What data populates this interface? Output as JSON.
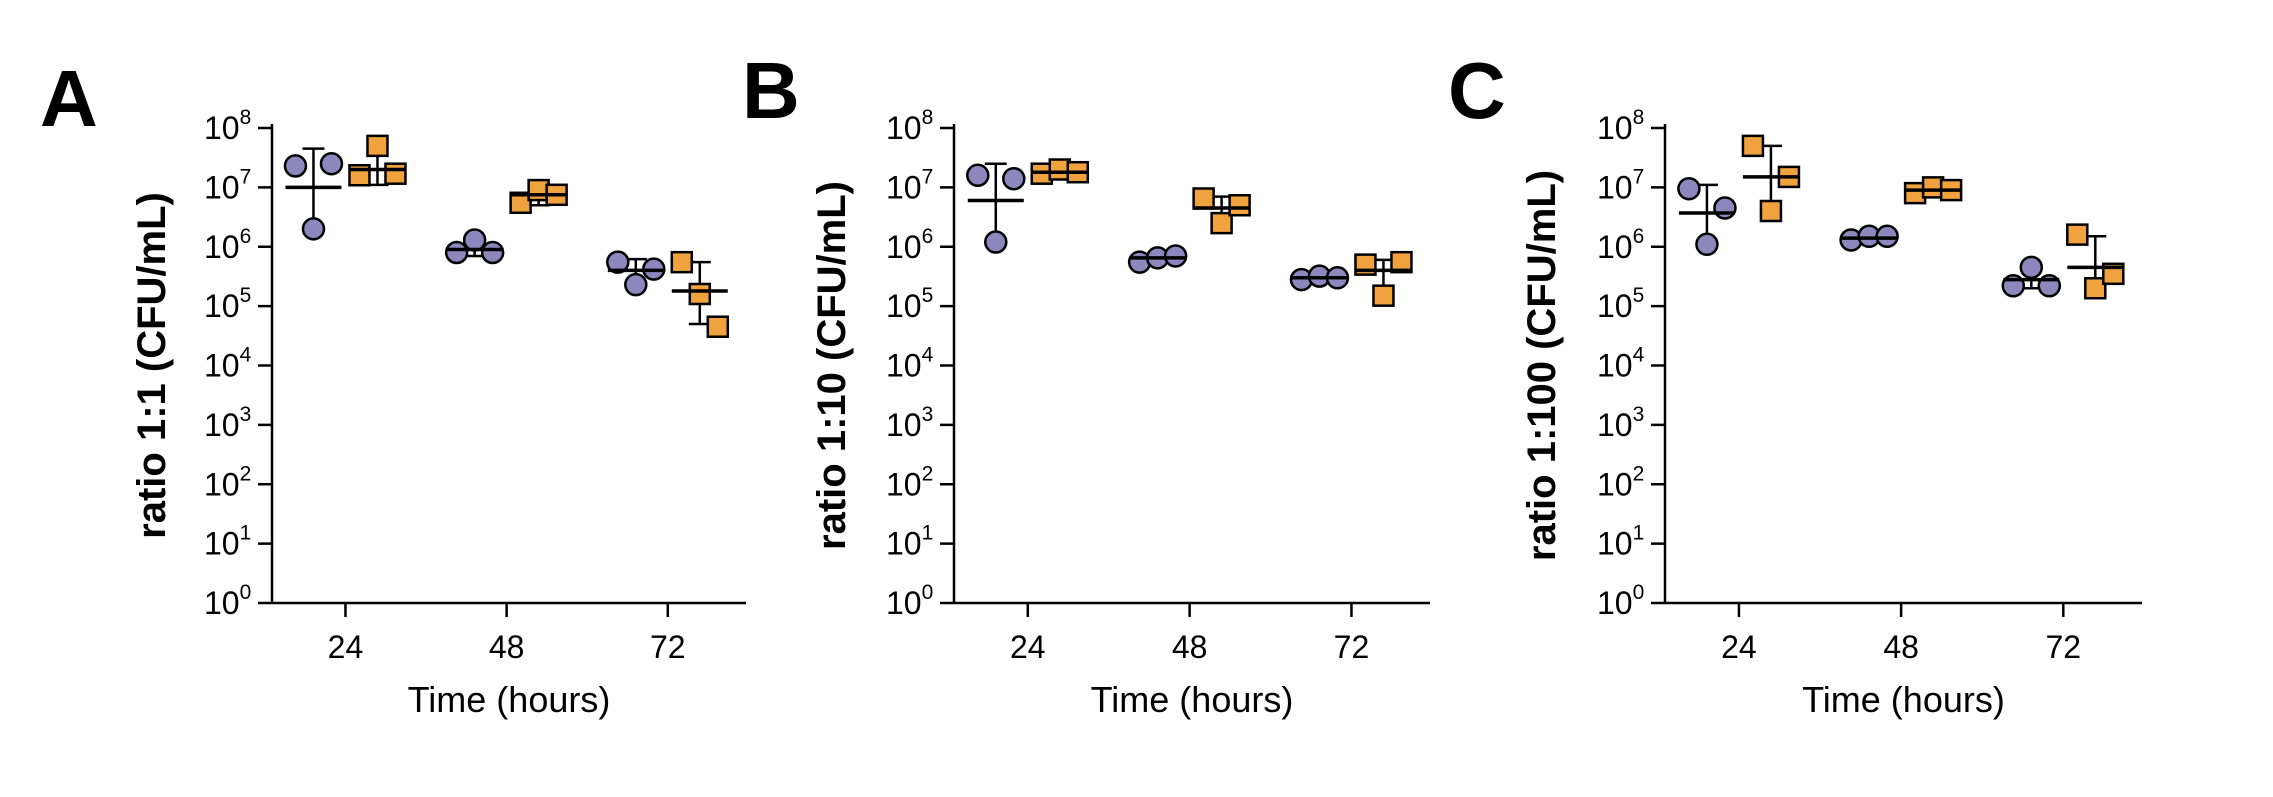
{
  "colors": {
    "circle": "#8e87bd",
    "square": "#f0a23e",
    "stroke": "#000000"
  },
  "chart_data": [
    {
      "panel": "A",
      "type": "scatter",
      "ylabel": "ratio 1:1 (CFU/mL)",
      "xlabel": "Time (hours)",
      "x_ticks": [
        "24",
        "48",
        "72"
      ],
      "y_scale": "log10",
      "y_ticks": [
        "10^0",
        "10^1",
        "10^2",
        "10^3",
        "10^4",
        "10^5",
        "10^6",
        "10^7",
        "10^8"
      ],
      "ylim": [
        1,
        100000000
      ],
      "series": [
        {
          "marker": "circle",
          "groups": [
            {
              "x": "24",
              "points": [
                23000000,
                2000000,
                25000000
              ],
              "mean": 10000000,
              "sd_low": 2000000,
              "sd_high": 45000000
            },
            {
              "x": "48",
              "points": [
                800000,
                1300000,
                800000
              ],
              "mean": 900000,
              "sd_low": 700000,
              "sd_high": 1100000
            },
            {
              "x": "72",
              "points": [
                550000,
                230000,
                420000
              ],
              "mean": 400000,
              "sd_low": 230000,
              "sd_high": 620000
            }
          ]
        },
        {
          "marker": "square",
          "groups": [
            {
              "x": "24",
              "points": [
                16000000,
                50000000,
                17000000
              ],
              "mean": 20000000,
              "sd_low": 11000000,
              "sd_high": 38000000
            },
            {
              "x": "48",
              "points": [
                5500000,
                9000000,
                7500000
              ],
              "mean": 7500000,
              "sd_low": 5000000,
              "sd_high": 10000000
            },
            {
              "x": "72",
              "points": [
                550000,
                160000,
                45000
              ],
              "mean": 180000,
              "sd_low": 50000,
              "sd_high": 550000
            }
          ]
        }
      ]
    },
    {
      "panel": "B",
      "type": "scatter",
      "ylabel": "ratio 1:10 (CFU/mL)",
      "xlabel": "Time (hours)",
      "x_ticks": [
        "24",
        "48",
        "72"
      ],
      "y_scale": "log10",
      "y_ticks": [
        "10^0",
        "10^1",
        "10^2",
        "10^3",
        "10^4",
        "10^5",
        "10^6",
        "10^7",
        "10^8"
      ],
      "ylim": [
        1,
        100000000
      ],
      "series": [
        {
          "marker": "circle",
          "groups": [
            {
              "x": "24",
              "points": [
                16000000,
                1200000,
                14000000
              ],
              "mean": 6000000,
              "sd_low": 1200000,
              "sd_high": 25000000
            },
            {
              "x": "48",
              "points": [
                550000,
                650000,
                700000
              ],
              "mean": 650000,
              "sd_low": 550000,
              "sd_high": 750000
            },
            {
              "x": "72",
              "points": [
                280000,
                320000,
                300000
              ],
              "mean": 300000,
              "sd_low": 260000,
              "sd_high": 350000
            }
          ]
        },
        {
          "marker": "square",
          "groups": [
            {
              "x": "24",
              "points": [
                17000000,
                20000000,
                18000000
              ],
              "mean": 18000000,
              "sd_low": 15000000,
              "sd_high": 22000000
            },
            {
              "x": "48",
              "points": [
                6500000,
                2500000,
                5000000
              ],
              "mean": 4500000,
              "sd_low": 2500000,
              "sd_high": 7000000
            },
            {
              "x": "72",
              "points": [
                500000,
                150000,
                550000
              ],
              "mean": 400000,
              "sd_low": 200000,
              "sd_high": 600000
            }
          ]
        }
      ]
    },
    {
      "panel": "C",
      "type": "scatter",
      "ylabel": "ratio 1:100 (CFU/mL)",
      "xlabel": "Time (hours)",
      "x_ticks": [
        "24",
        "48",
        "72"
      ],
      "y_scale": "log10",
      "y_ticks": [
        "10^0",
        "10^1",
        "10^2",
        "10^3",
        "10^4",
        "10^5",
        "10^6",
        "10^7",
        "10^8"
      ],
      "ylim": [
        1,
        100000000
      ],
      "series": [
        {
          "marker": "circle",
          "groups": [
            {
              "x": "24",
              "points": [
                9500000,
                1100000,
                4500000
              ],
              "mean": 3700000,
              "sd_low": 1100000,
              "sd_high": 11000000
            },
            {
              "x": "48",
              "points": [
                1300000,
                1500000,
                1500000
              ],
              "mean": 1400000,
              "sd_low": 1250000,
              "sd_high": 1550000
            },
            {
              "x": "72",
              "points": [
                220000,
                450000,
                220000
              ],
              "mean": 280000,
              "sd_low": 200000,
              "sd_high": 420000
            }
          ]
        },
        {
          "marker": "square",
          "groups": [
            {
              "x": "24",
              "points": [
                50000000,
                4000000,
                15000000
              ],
              "mean": 15000000,
              "sd_low": 4000000,
              "sd_high": 50000000
            },
            {
              "x": "48",
              "points": [
                8000000,
                10000000,
                9000000
              ],
              "mean": 9000000,
              "sd_low": 7500000,
              "sd_high": 11000000
            },
            {
              "x": "72",
              "points": [
                1600000,
                200000,
                350000
              ],
              "mean": 450000,
              "sd_low": 150000,
              "sd_high": 1500000
            }
          ]
        }
      ]
    }
  ]
}
